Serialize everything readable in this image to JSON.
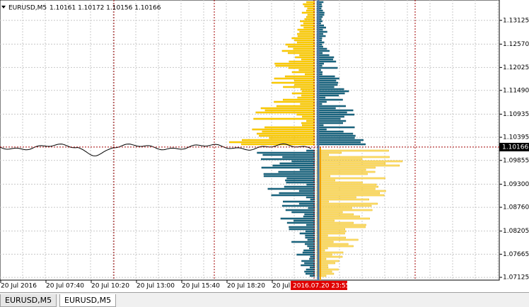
{
  "window": {
    "header": {
      "symbol": "EURUSD,M5",
      "ohlc": "1.10161 1.10172 1.10156 1.10166"
    },
    "price_axis": {
      "ylim": [
        1.0706,
        1.136
      ],
      "ticks": [
        1.13125,
        {
          "value": 1.1257,
          "label": "1.12570"
        },
        1.12025,
        {
          "value": 1.1149,
          "label": "1.11490"
        },
        1.10935,
        1.10395,
        1.09855,
        {
          "value": 1.093,
          "label": "1.09300"
        },
        {
          "value": 1.0876,
          "label": "1.08760"
        },
        1.08205,
        1.07665,
        1.07125
      ],
      "current_price": {
        "value": 1.10166,
        "label": "1.10166"
      }
    },
    "time_axis": {
      "labels": [
        "20 Jul 2016",
        "20 Jul 07:40",
        "20 Jul 10:20",
        "20 Jul 13:00",
        "20 Jul 15:40",
        "20 Jul 18:20",
        "20 Jul 2"
      ],
      "cursor_label": "2016.07.20 23:55"
    },
    "tabs": [
      "EURUSD,M5",
      "EURUSD,M5"
    ]
  }
}
